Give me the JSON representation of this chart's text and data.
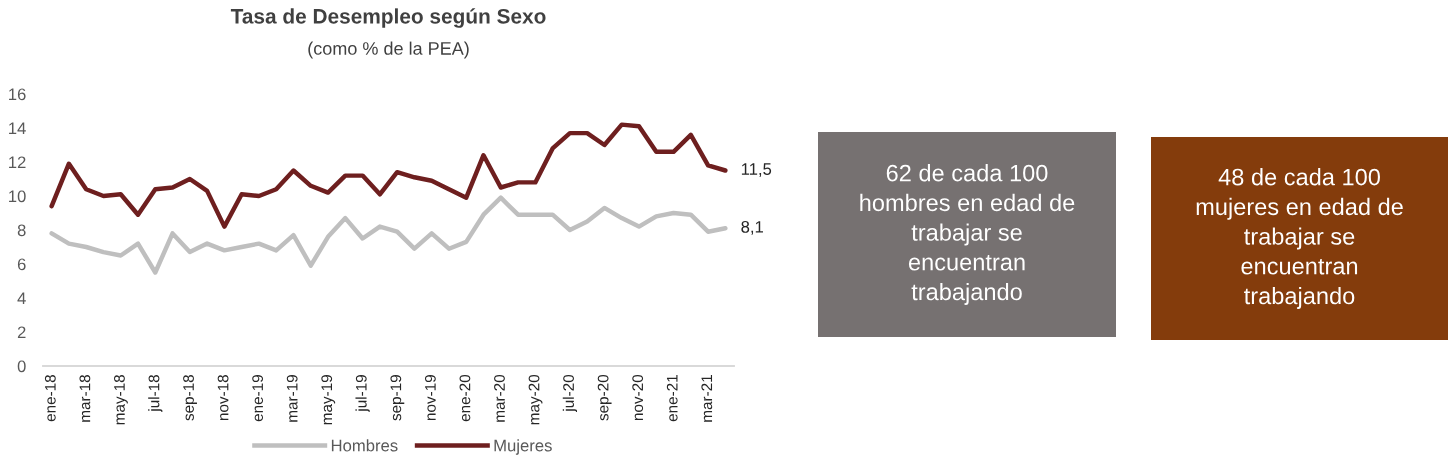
{
  "chart_data": [
    {
      "type": "line",
      "title": "Tasa de Desempleo según Sexo",
      "subtitle": "(como % de la PEA)",
      "categories": [
        "ene-18",
        null,
        "mar-18",
        null,
        "may-18",
        null,
        "jul-18",
        null,
        "sep-18",
        null,
        "nov-18",
        null,
        "ene-19",
        null,
        "mar-19",
        null,
        "may-19",
        null,
        "jul-19",
        null,
        "sep-19",
        null,
        "nov-19",
        null,
        "ene-20",
        null,
        "mar-20",
        null,
        "may-20",
        null,
        "jul-20",
        null,
        "sep-20",
        null,
        "nov-20",
        null,
        "ene-21",
        null,
        "mar-21",
        null
      ],
      "series": [
        {
          "name": "Hombres",
          "color": "#bfbfbf",
          "values": [
            7.8,
            7.2,
            7.0,
            6.7,
            6.5,
            7.2,
            5.5,
            7.8,
            6.7,
            7.2,
            6.8,
            7.0,
            7.2,
            6.8,
            7.7,
            5.9,
            7.6,
            8.7,
            7.5,
            8.2,
            7.9,
            6.9,
            7.8,
            6.9,
            7.3,
            8.9,
            9.9,
            8.9,
            8.9,
            8.9,
            8.0,
            8.5,
            9.3,
            8.7,
            8.2,
            8.8,
            9.0,
            8.9,
            7.9,
            8.1
          ],
          "value_labels": [
            null,
            null,
            null,
            null,
            null,
            null,
            null,
            null,
            null,
            null,
            null,
            null,
            null,
            null,
            null,
            null,
            null,
            null,
            null,
            null,
            null,
            null,
            null,
            null,
            null,
            null,
            null,
            null,
            null,
            null,
            null,
            null,
            null,
            null,
            null,
            null,
            null,
            null,
            null,
            "8,1"
          ]
        },
        {
          "name": "Mujeres",
          "color": "#6e1f1f",
          "values": [
            9.4,
            11.9,
            10.4,
            10.0,
            10.1,
            8.9,
            10.4,
            10.5,
            11.0,
            10.3,
            8.2,
            10.1,
            10.0,
            10.4,
            11.5,
            10.6,
            10.2,
            11.2,
            11.2,
            10.1,
            11.4,
            11.1,
            10.9,
            10.4,
            9.9,
            12.4,
            10.5,
            10.8,
            10.8,
            12.8,
            13.7,
            13.7,
            13.0,
            14.2,
            14.1,
            12.6,
            12.6,
            13.6,
            11.8,
            11.5
          ],
          "value_labels": [
            null,
            null,
            null,
            null,
            null,
            null,
            null,
            null,
            null,
            null,
            null,
            null,
            null,
            null,
            null,
            null,
            null,
            null,
            null,
            null,
            null,
            null,
            null,
            null,
            null,
            null,
            null,
            null,
            null,
            null,
            null,
            null,
            null,
            null,
            null,
            null,
            null,
            null,
            null,
            "11,5"
          ]
        }
      ],
      "ylim": [
        0,
        16
      ],
      "yticks": [
        0,
        2,
        4,
        6,
        8,
        10,
        12,
        14,
        16
      ],
      "grid": false,
      "legend": "bottom"
    },
    {
      "type": "other",
      "annotations": [
        "62 de cada 100 hombres en edad de trabajar se encuentran trabajando"
      ],
      "colors": [
        "#767171"
      ]
    },
    {
      "type": "other",
      "annotations": [
        "48 de cada 100 mujeres en edad de trabajar se encuentran trabajando"
      ],
      "colors": [
        "#843c0c"
      ]
    }
  ]
}
